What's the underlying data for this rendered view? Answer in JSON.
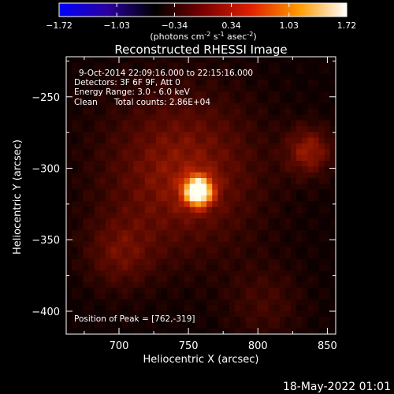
{
  "colorbar": {
    "ticks": [
      "-1.72",
      "-1.03",
      "-0.34",
      "0.34",
      "1.03",
      "1.72"
    ],
    "range": [
      -1.72,
      1.72
    ],
    "unit_prefix": "(photons cm",
    "unit_exp1": "-2",
    "unit_mid": " s",
    "unit_exp2": "-1",
    "unit_mid2": " asec",
    "unit_exp3": "-2",
    "unit_suffix": ")",
    "stops": [
      "#0000ff",
      "#2a00a0",
      "#000000",
      "#7a0000",
      "#e02000",
      "#ff9a00",
      "#ffffff"
    ]
  },
  "chart_data": {
    "type": "heatmap",
    "title": "Reconstructed RHESSI Image",
    "xlabel": "Heliocentric X (arcsec)",
    "ylabel": "Heliocentric Y (arcsec)",
    "xlim": [
      662,
      856
    ],
    "ylim": [
      -416,
      -222
    ],
    "x_ticks": [
      700,
      750,
      800,
      850
    ],
    "y_ticks": [
      -250,
      -300,
      -350,
      -400
    ],
    "x_tick_labels": [
      "700",
      "750",
      "800",
      "850"
    ],
    "y_tick_labels": [
      "−250",
      "−300",
      "−350",
      "−400"
    ],
    "peak": {
      "x": 762,
      "y": -319
    },
    "annotations": {
      "time_range": "9-Oct-2014 22:09:16.000 to 22:15:16.000",
      "detectors": "Detectors: 3F 6F 9F, Att 0",
      "energy": "Energy Range: 3.0 - 6.0 keV",
      "method": "Clean",
      "counts": "Total counts: 2.86E+04",
      "peak_label": "Position of Peak = [762,-319]"
    },
    "sources": [
      {
        "x": 757,
        "y": -316,
        "sigma": 7,
        "amp": 1.0
      },
      {
        "x": 745,
        "y": -303,
        "sigma": 40,
        "amp": 0.35
      },
      {
        "x": 837,
        "y": -288,
        "sigma": 12,
        "amp": 0.35
      },
      {
        "x": 700,
        "y": -360,
        "sigma": 18,
        "amp": 0.22
      },
      {
        "x": 805,
        "y": -395,
        "sigma": 20,
        "amp": 0.15
      }
    ]
  },
  "footer": {
    "date": "18-May-2022 01:01"
  }
}
